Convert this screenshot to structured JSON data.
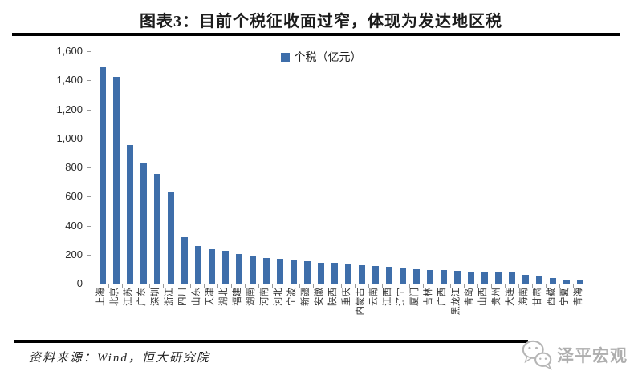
{
  "title": "图表3：目前个税征收面过窄，体现为发达地区税",
  "legend": {
    "label": "个税（亿元）",
    "color": "#3E6EAA"
  },
  "source": "资料来源：Wind，恒大研究院",
  "watermark": {
    "text": "泽平宏观",
    "logo": "wechat-bubbles-icon",
    "color": "#aeaeae"
  },
  "chart_data": {
    "type": "bar",
    "title": "图表3：目前个税征收面过窄，体现为发达地区税",
    "legend": [
      "个税（亿元）"
    ],
    "legend_position": "top-center",
    "bar_color": "#3E6EAA",
    "grid": false,
    "ylabel": "",
    "xlabel": "",
    "ylim": [
      0,
      1600
    ],
    "ytick_interval": 200,
    "ytick_labels": [
      "0",
      "200",
      "400",
      "600",
      "800",
      "1,000",
      "1,200",
      "1,400",
      "1,600"
    ],
    "categories": [
      "上海",
      "北京",
      "江苏",
      "广东",
      "深圳",
      "浙江",
      "四川",
      "山东",
      "天津",
      "湖北",
      "福建",
      "湖南",
      "河南",
      "河北",
      "宁波",
      "新疆",
      "安徽",
      "陕西",
      "重庆",
      "内蒙古",
      "云南",
      "江西",
      "辽宁",
      "厦门",
      "吉林",
      "广西",
      "黑龙江",
      "青岛",
      "山西",
      "贵州",
      "大连",
      "海南",
      "甘肃",
      "西藏",
      "宁夏",
      "青海"
    ],
    "values": [
      1490,
      1425,
      955,
      830,
      755,
      630,
      320,
      258,
      238,
      225,
      203,
      185,
      175,
      170,
      158,
      152,
      146,
      142,
      138,
      128,
      124,
      118,
      108,
      100,
      95,
      92,
      88,
      85,
      82,
      78,
      75,
      60,
      55,
      40,
      30,
      20
    ]
  }
}
